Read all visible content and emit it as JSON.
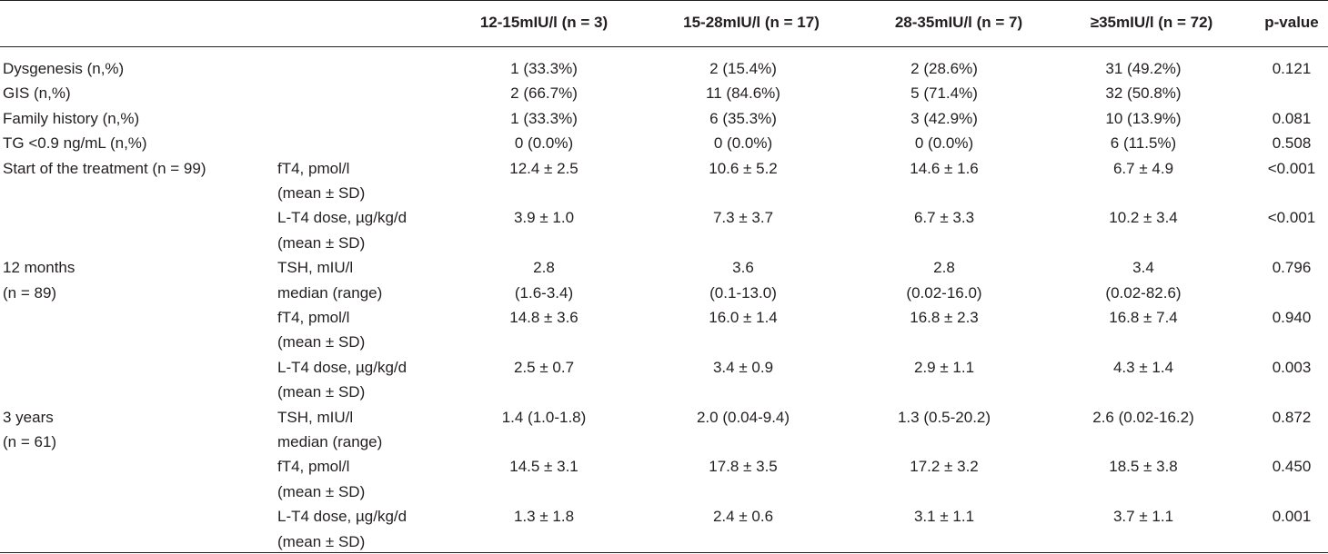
{
  "headers": [
    "",
    "",
    "12-15mIU/l (n = 3)",
    "15-28mIU/l (n = 17)",
    "28-35mIU/l (n = 7)",
    "≥35mIU/l (n = 72)",
    "p-value"
  ],
  "rows": [
    {
      "label": "Dysgenesis (n,%)",
      "sub": "",
      "c1": "1 (33.3%)",
      "c2": "2 (15.4%)",
      "c3": "2 (28.6%)",
      "c4": "31 (49.2%)",
      "p": "0.121"
    },
    {
      "label": "GIS (n,%)",
      "sub": "",
      "c1": "2 (66.7%)",
      "c2": "11 (84.6%)",
      "c3": "5 (71.4%)",
      "c4": "32 (50.8%)",
      "p": ""
    },
    {
      "label": "Family history (n,%)",
      "sub": "",
      "c1": "1 (33.3%)",
      "c2": "6 (35.3%)",
      "c3": "3 (42.9%)",
      "c4": "10 (13.9%)",
      "p": "0.081"
    },
    {
      "label": "TG <0.9 ng/mL (n,%)",
      "sub": "",
      "c1": "0 (0.0%)",
      "c2": "0 (0.0%)",
      "c3": "0 (0.0%)",
      "c4": "6 (11.5%)",
      "p": "0.508"
    },
    {
      "label": "Start of the treatment (n = 99)",
      "sub": "fT4, pmol/l",
      "c1": "12.4 ± 2.5",
      "c2": "10.6 ± 5.2",
      "c3": "14.6 ± 1.6",
      "c4": "6.7 ± 4.9",
      "p": "<0.001"
    },
    {
      "label": "",
      "sub": "(mean ± SD)",
      "c1": "",
      "c2": "",
      "c3": "",
      "c4": "",
      "p": ""
    },
    {
      "label": "",
      "sub": "L-T4 dose, µg/kg/d",
      "c1": "3.9 ± 1.0",
      "c2": "7.3 ± 3.7",
      "c3": "6.7 ± 3.3",
      "c4": "10.2 ± 3.4",
      "p": "<0.001"
    },
    {
      "label": "",
      "sub": "(mean ± SD)",
      "c1": "",
      "c2": "",
      "c3": "",
      "c4": "",
      "p": ""
    },
    {
      "label": "12 months",
      "sub": "TSH, mIU/l",
      "c1": "2.8",
      "c2": "3.6",
      "c3": "2.8",
      "c4": "3.4",
      "p": "0.796"
    },
    {
      "label": "(n = 89)",
      "sub": "median (range)",
      "c1": "(1.6-3.4)",
      "c2": "(0.1-13.0)",
      "c3": "(0.02-16.0)",
      "c4": "(0.02-82.6)",
      "p": ""
    },
    {
      "label": "",
      "sub": "fT4, pmol/l",
      "c1": "14.8 ± 3.6",
      "c2": "16.0 ± 1.4",
      "c3": "16.8 ± 2.3",
      "c4": "16.8 ± 7.4",
      "p": "0.940"
    },
    {
      "label": "",
      "sub": "(mean ± SD)",
      "c1": "",
      "c2": "",
      "c3": "",
      "c4": "",
      "p": ""
    },
    {
      "label": "",
      "sub": "L-T4 dose, µg/kg/d",
      "c1": "2.5 ± 0.7",
      "c2": "3.4 ± 0.9",
      "c3": "2.9 ± 1.1",
      "c4": "4.3 ± 1.4",
      "p": "0.003"
    },
    {
      "label": "",
      "sub": "(mean ± SD)",
      "c1": "",
      "c2": "",
      "c3": "",
      "c4": "",
      "p": ""
    },
    {
      "label": "3 years",
      "sub": "TSH, mIU/l",
      "c1": "1.4 (1.0-1.8)",
      "c2": "2.0 (0.04-9.4)",
      "c3": "1.3 (0.5-20.2)",
      "c4": "2.6 (0.02-16.2)",
      "p": "0.872"
    },
    {
      "label": "(n = 61)",
      "sub": "median (range)",
      "c1": "",
      "c2": "",
      "c3": "",
      "c4": "",
      "p": ""
    },
    {
      "label": "",
      "sub": "fT4, pmol/l",
      "c1": "14.5 ± 3.1",
      "c2": "17.8 ± 3.5",
      "c3": "17.2 ± 3.2",
      "c4": "18.5 ± 3.8",
      "p": "0.450"
    },
    {
      "label": "",
      "sub": "(mean ± SD)",
      "c1": "",
      "c2": "",
      "c3": "",
      "c4": "",
      "p": ""
    },
    {
      "label": "",
      "sub": "L-T4 dose, µg/kg/d",
      "c1": "1.3 ± 1.8",
      "c2": "2.4 ± 0.6",
      "c3": "3.1 ± 1.1",
      "c4": "3.7 ± 1.1",
      "p": "0.001"
    },
    {
      "label": "",
      "sub": "(mean ± SD)",
      "c1": "",
      "c2": "",
      "c3": "",
      "c4": "",
      "p": ""
    }
  ]
}
